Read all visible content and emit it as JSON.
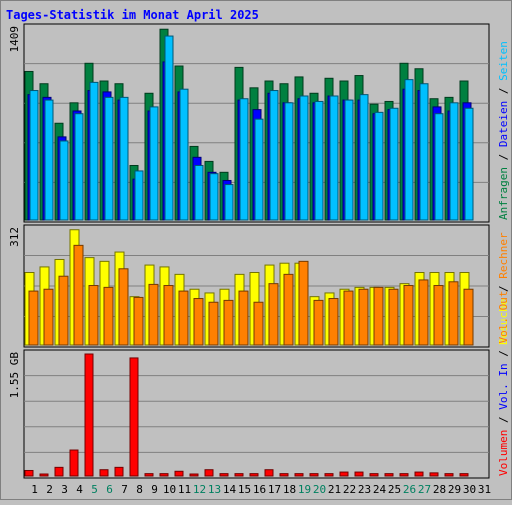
{
  "title": "Tages-Statistik im Monat April 2025",
  "colors": {
    "background": "#c0c0c0",
    "panel": "#c0c0c0",
    "title": "#0000ff",
    "weekday_label": "#000000",
    "weekend_label": "#008060",
    "anfragen": "#008040",
    "dateien": "#0000ff",
    "seiten": "#00c0ff",
    "besuche": "#ffff00",
    "rechner": "#ff8000",
    "vol_out": "#ff8000",
    "vol_in": "#0000ff",
    "volumen": "#ff0000"
  },
  "chart_data": [
    {
      "type": "bar",
      "name": "top",
      "ymax_label": "1409",
      "ylim": [
        0,
        1409
      ],
      "grid": true,
      "categories": [
        "1",
        "2",
        "3",
        "4",
        "5",
        "6",
        "7",
        "8",
        "9",
        "10",
        "11",
        "12",
        "13",
        "14",
        "15",
        "16",
        "17",
        "18",
        "19",
        "20",
        "21",
        "22",
        "23",
        "24",
        "25",
        "26",
        "27",
        "28",
        "29",
        "30",
        "31"
      ],
      "weekend_days": [
        "5",
        "6",
        "12",
        "13",
        "19",
        "20",
        "26",
        "27"
      ],
      "side_labels": [
        {
          "text": "Anfragen",
          "color": "#008040"
        },
        {
          "text": "Dateien",
          "color": "#0000ff"
        },
        {
          "text": "Seiten",
          "color": "#00c0ff"
        }
      ],
      "series": [
        {
          "name": "Anfragen",
          "color": "#008040",
          "values": [
            1090,
            1000,
            710,
            860,
            1150,
            1020,
            1000,
            400,
            930,
            1400,
            1130,
            540,
            430,
            350,
            1120,
            970,
            1020,
            1000,
            1050,
            930,
            1040,
            1020,
            1060,
            850,
            870,
            1150,
            1110,
            890,
            900,
            1020,
            null
          ]
        },
        {
          "name": "Dateien",
          "color": "#0000ff",
          "values": [
            920,
            900,
            610,
            800,
            950,
            940,
            880,
            300,
            800,
            1160,
            940,
            460,
            350,
            290,
            880,
            810,
            930,
            860,
            890,
            860,
            910,
            880,
            880,
            780,
            810,
            960,
            950,
            830,
            800,
            860,
            null
          ]
        },
        {
          "name": "Seiten",
          "color": "#00c0ff",
          "values": [
            950,
            880,
            580,
            780,
            1010,
            900,
            900,
            360,
            830,
            1350,
            960,
            400,
            340,
            260,
            890,
            740,
            950,
            860,
            910,
            870,
            910,
            880,
            920,
            790,
            820,
            1030,
            1000,
            780,
            860,
            820,
            null
          ]
        }
      ]
    },
    {
      "type": "bar",
      "name": "middle",
      "ymax_label": "312",
      "ylim": [
        0,
        312
      ],
      "grid": true,
      "categories": [
        "1",
        "2",
        "3",
        "4",
        "5",
        "6",
        "7",
        "8",
        "9",
        "10",
        "11",
        "12",
        "13",
        "14",
        "15",
        "16",
        "17",
        "18",
        "19",
        "20",
        "21",
        "22",
        "23",
        "24",
        "25",
        "26",
        "27",
        "28",
        "29",
        "30",
        "31"
      ],
      "side_labels": [
        {
          "text": "Besuche",
          "color": "#ffff00"
        },
        {
          "text": "Rechner",
          "color": "#ff8000"
        }
      ],
      "series": [
        {
          "name": "Besuche",
          "color": "#ffff00",
          "values": [
            195,
            210,
            230,
            310,
            235,
            225,
            250,
            130,
            215,
            210,
            190,
            150,
            140,
            150,
            190,
            195,
            215,
            220,
            220,
            130,
            140,
            150,
            155,
            155,
            155,
            165,
            195,
            195,
            195,
            195,
            null
          ]
        },
        {
          "name": "Rechner",
          "color": "#ff8000",
          "values": [
            145,
            150,
            185,
            268,
            160,
            155,
            205,
            128,
            163,
            160,
            145,
            125,
            115,
            120,
            145,
            115,
            165,
            190,
            225,
            120,
            125,
            145,
            150,
            155,
            150,
            160,
            175,
            160,
            170,
            150,
            null
          ]
        }
      ]
    },
    {
      "type": "bar",
      "name": "bottom",
      "ymax_label": "1.55 GB",
      "ylim": [
        0,
        1.55
      ],
      "grid": true,
      "categories": [
        "1",
        "2",
        "3",
        "4",
        "5",
        "6",
        "7",
        "8",
        "9",
        "10",
        "11",
        "12",
        "13",
        "14",
        "15",
        "16",
        "17",
        "18",
        "19",
        "20",
        "21",
        "22",
        "23",
        "24",
        "25",
        "26",
        "27",
        "28",
        "29",
        "30",
        "31"
      ],
      "side_labels": [
        {
          "text": "Volumen",
          "color": "#ff0000"
        },
        {
          "text": "Vol. In",
          "color": "#0000ff"
        },
        {
          "text": "Vol. Out",
          "color": "#ff8000"
        }
      ],
      "series": [
        {
          "name": "Volumen",
          "color": "#ff0000",
          "values": [
            0.07,
            0.02,
            0.11,
            0.33,
            1.55,
            0.08,
            0.11,
            1.5,
            0.03,
            0.03,
            0.06,
            0.02,
            0.08,
            0.03,
            0.03,
            0.03,
            0.08,
            0.03,
            0.03,
            0.03,
            0.03,
            0.05,
            0.05,
            0.03,
            0.03,
            0.03,
            0.05,
            0.04,
            0.03,
            0.03,
            null
          ]
        }
      ]
    }
  ]
}
